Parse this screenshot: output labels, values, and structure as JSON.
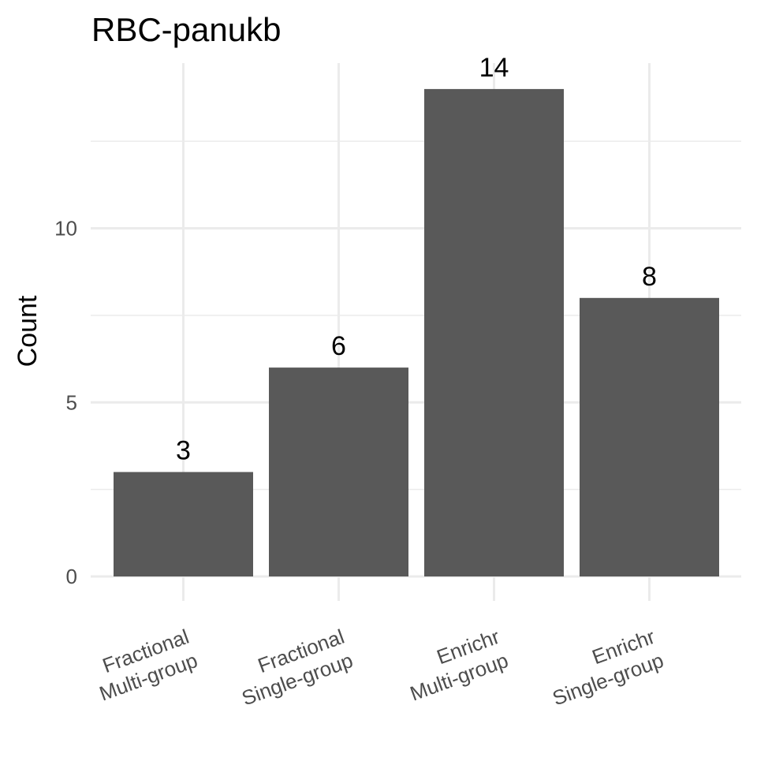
{
  "chart_data": {
    "type": "bar",
    "title": "RBC-panukb",
    "xlabel": "",
    "ylabel": "Count",
    "categories": [
      [
        "Fractional",
        "Multi-group"
      ],
      [
        "Fractional",
        "Single-group"
      ],
      [
        "Enrichr",
        "Multi-group"
      ],
      [
        "Enrichr",
        "Single-group"
      ]
    ],
    "values": [
      3,
      6,
      14,
      8
    ],
    "value_labels": [
      "3",
      "6",
      "14",
      "8"
    ],
    "yticks": [
      0,
      5,
      10
    ],
    "ytick_labels": [
      "0",
      "5",
      "10"
    ],
    "ylim": [
      0,
      14
    ],
    "grid": true,
    "legend": false,
    "colors": {
      "bar": "#595959",
      "grid": "#ebebeb",
      "tick_text": "#4d4d4d",
      "text": "#000000",
      "background": "#ffffff"
    }
  }
}
